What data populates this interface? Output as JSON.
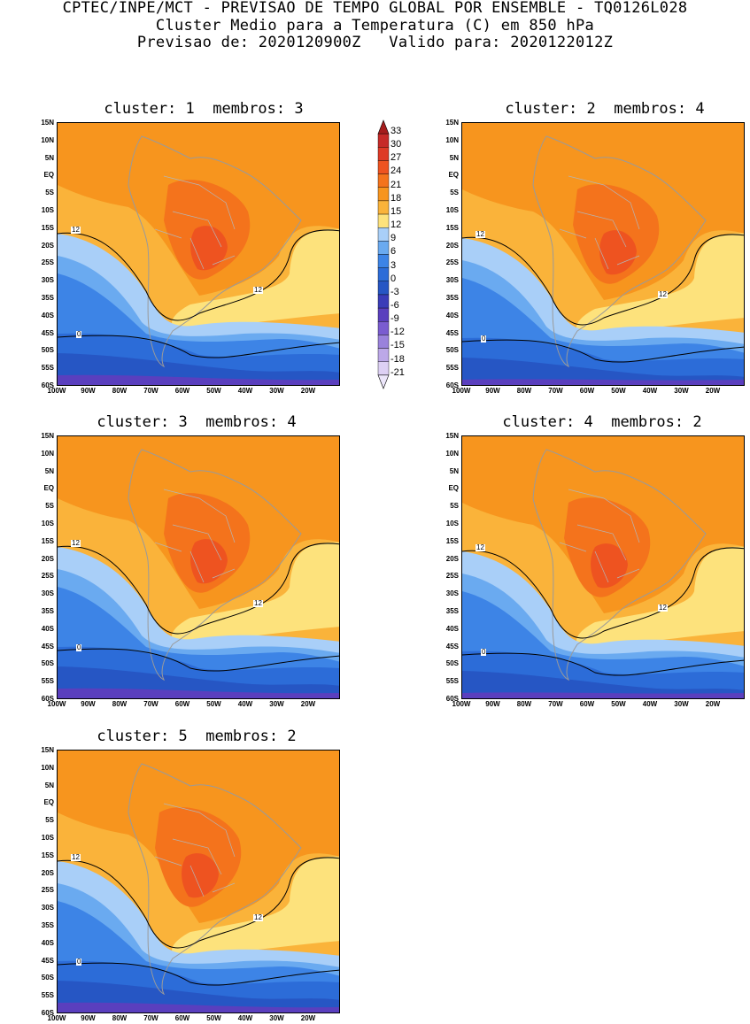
{
  "header": {
    "line1": "CPTEC/INPE/MCT - PREVISAO DE TEMPO GLOBAL POR ENSEMBLE - TQ0126L028",
    "line2": "Cluster Medio para a Temperatura (C) em 850 hPa",
    "line3": "Previsao de: 2020120900Z   Valido para: 2020122012Z"
  },
  "lat_labels": [
    "15N",
    "10N",
    "5N",
    "EQ",
    "5S",
    "10S",
    "15S",
    "20S",
    "25S",
    "30S",
    "35S",
    "40S",
    "45S",
    "50S",
    "55S",
    "60S"
  ],
  "lon_labels": [
    "100W",
    "90W",
    "80W",
    "70W",
    "60W",
    "50W",
    "40W",
    "30W",
    "20W"
  ],
  "colorbar": {
    "ticks": [
      "33",
      "30",
      "27",
      "24",
      "21",
      "18",
      "15",
      "12",
      "9",
      "6",
      "3",
      "0",
      "-3",
      "-6",
      "-9",
      "-12",
      "-15",
      "-18",
      "-21"
    ],
    "colors": [
      "#a51c1c",
      "#c62a28",
      "#de3a26",
      "#ee5320",
      "#f4731c",
      "#f7951e",
      "#fab33a",
      "#fde27c",
      "#a9cff8",
      "#6aaaf0",
      "#3d84e6",
      "#2c6cd8",
      "#2656c4",
      "#3a3cb8",
      "#5a3fbe",
      "#7a5cd0",
      "#9a82dc",
      "#bca8e8",
      "#ddd0f4"
    ]
  },
  "panels": [
    {
      "title": "cluster: 1  membros: 3",
      "contour_12": "12",
      "contour_0": "0"
    },
    {
      "title": "cluster: 2  membros: 4",
      "contour_12": "12",
      "contour_0": "0"
    },
    {
      "title": "cluster: 3  membros: 4",
      "contour_12": "12",
      "contour_0": "0"
    },
    {
      "title": "cluster: 4  membros: 2",
      "contour_12": "12",
      "contour_0": "0"
    },
    {
      "title": "cluster: 5  membros: 2",
      "contour_12": "12",
      "contour_0": "0"
    }
  ]
}
